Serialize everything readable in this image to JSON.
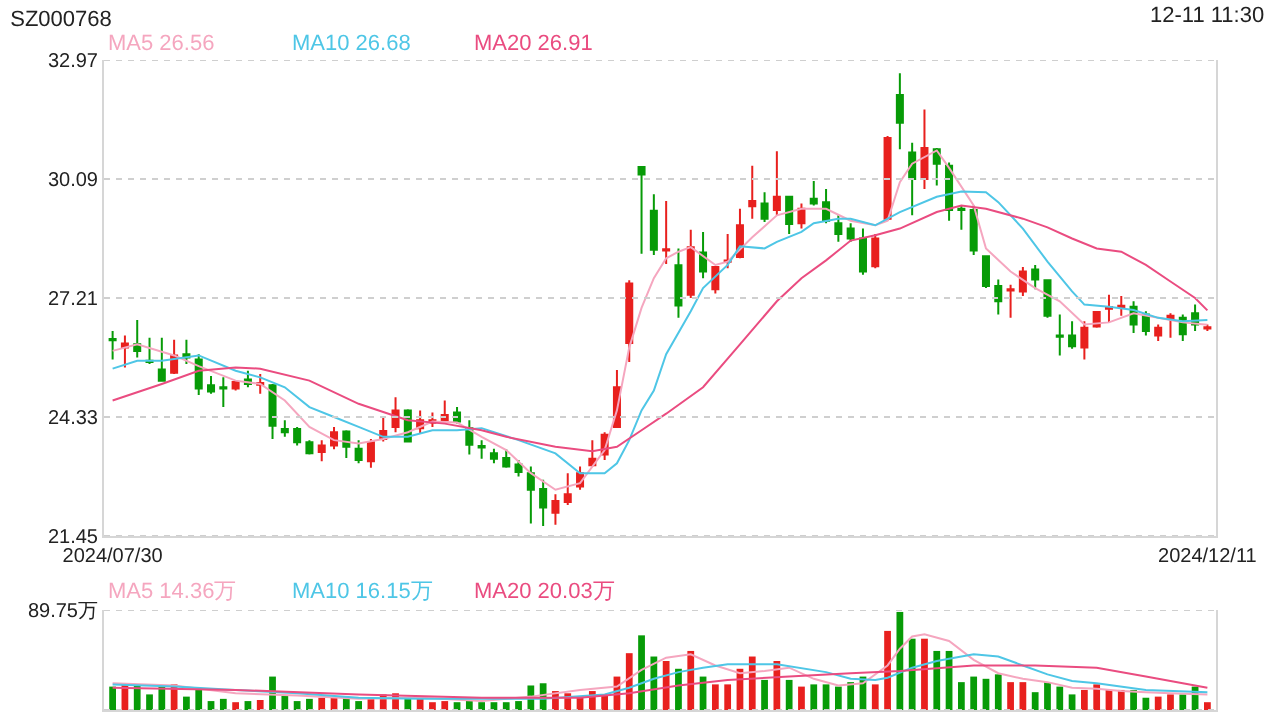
{
  "chart_data": [
    {
      "type": "candlestick",
      "title": "SZ000768",
      "annotations": [
        "12-11 11:30"
      ],
      "categories": [
        "2024/07/30",
        null,
        null,
        null,
        null,
        null,
        null,
        null,
        null,
        null,
        null,
        null,
        null,
        null,
        null,
        null,
        null,
        null,
        null,
        null,
        null,
        null,
        null,
        null,
        null,
        null,
        null,
        null,
        null,
        null,
        null,
        null,
        null,
        null,
        null,
        null,
        null,
        null,
        null,
        null,
        null,
        null,
        null,
        null,
        null,
        null,
        null,
        null,
        null,
        null,
        null,
        null,
        null,
        null,
        null,
        null,
        null,
        null,
        null,
        null,
        null,
        null,
        null,
        null,
        null,
        null,
        null,
        null,
        null,
        null,
        null,
        null,
        null,
        null,
        null,
        null,
        null,
        null,
        null,
        null,
        null,
        null,
        null,
        null,
        null,
        null,
        null,
        null,
        null,
        "2024/12/11"
      ],
      "ohlc": [
        [
          26.22,
          26.41,
          25.72,
          26.19
        ],
        [
          26.01,
          26.3,
          25.53,
          26.11
        ],
        [
          26.09,
          26.68,
          25.77,
          25.93
        ],
        [
          25.69,
          26.25,
          25.61,
          25.66
        ],
        [
          25.48,
          26.25,
          25.21,
          25.21
        ],
        [
          25.4,
          26.2,
          25.37,
          25.82
        ],
        [
          25.85,
          26.2,
          25.61,
          25.77
        ],
        [
          25.72,
          25.85,
          24.86,
          25.02
        ],
        [
          25.1,
          25.32,
          24.89,
          24.95
        ],
        [
          25.05,
          25.29,
          24.57,
          25.02
        ],
        [
          25.02,
          25.21,
          24.97,
          25.18
        ],
        [
          25.24,
          25.45,
          25.05,
          25.13
        ],
        [
          25.11,
          25.37,
          24.89,
          25.15
        ],
        [
          25.1,
          25.13,
          23.8,
          24.12
        ],
        [
          24.04,
          24.25,
          23.85,
          23.96
        ],
        [
          24.04,
          24.09,
          23.64,
          23.72
        ],
        [
          23.72,
          23.77,
          23.42,
          23.45
        ],
        [
          23.48,
          23.77,
          23.26,
          23.64
        ],
        [
          23.64,
          24.09,
          23.55,
          23.96
        ],
        [
          23.98,
          24.01,
          23.34,
          23.61
        ],
        [
          23.56,
          23.77,
          23.21,
          23.29
        ],
        [
          23.26,
          23.8,
          23.1,
          23.72
        ],
        [
          23.8,
          24.33,
          23.74,
          23.99
        ],
        [
          24.09,
          24.81,
          23.96,
          24.49
        ],
        [
          24.49,
          24.52,
          23.72,
          23.74
        ],
        [
          24.06,
          24.49,
          23.93,
          24.25
        ],
        [
          24.19,
          24.44,
          24.09,
          24.25
        ],
        [
          24.25,
          24.73,
          24.17,
          24.38
        ],
        [
          24.44,
          24.57,
          24.17,
          24.22
        ],
        [
          24.06,
          24.25,
          23.42,
          23.66
        ],
        [
          23.63,
          23.77,
          23.32,
          23.59
        ],
        [
          23.45,
          23.56,
          23.21,
          23.32
        ],
        [
          23.34,
          23.55,
          23.1,
          23.13
        ],
        [
          23.18,
          23.29,
          22.89,
          23.0
        ],
        [
          22.97,
          23.13,
          21.75,
          22.57
        ],
        [
          22.59,
          22.81,
          21.69,
          22.14
        ],
        [
          22.01,
          22.46,
          21.72,
          22.3
        ],
        [
          22.27,
          22.97,
          22.2,
          22.46
        ],
        [
          22.65,
          23.13,
          22.57,
          22.97
        ],
        [
          23.16,
          23.77,
          23.13,
          23.32
        ],
        [
          23.42,
          23.96,
          23.29,
          23.9
        ],
        [
          24.09,
          25.47,
          24.09,
          25.05
        ],
        [
          26.12,
          27.64,
          25.66,
          27.56
        ],
        [
          30.38,
          30.4,
          28.28,
          30.2
        ],
        [
          29.32,
          29.72,
          28.25,
          28.38
        ],
        [
          28.36,
          29.56,
          28.03,
          28.39
        ],
        [
          28.0,
          28.41,
          26.73,
          27.03
        ],
        [
          27.29,
          28.86,
          27.21,
          28.44
        ],
        [
          28.31,
          28.81,
          27.69,
          27.85
        ],
        [
          27.42,
          27.96,
          27.32,
          27.96
        ],
        [
          28.09,
          28.76,
          27.93,
          28.12
        ],
        [
          28.2,
          29.37,
          28.17,
          28.97
        ],
        [
          29.43,
          30.41,
          29.13,
          29.56
        ],
        [
          29.5,
          29.77,
          29.05,
          29.13
        ],
        [
          29.34,
          30.76,
          29.21,
          29.66
        ],
        [
          29.66,
          29.68,
          28.76,
          29.0
        ],
        [
          29.02,
          29.5,
          28.89,
          29.37
        ],
        [
          29.61,
          30.04,
          29.45,
          29.5
        ],
        [
          29.53,
          29.85,
          29.02,
          29.08
        ],
        [
          29.02,
          29.21,
          28.57,
          28.76
        ],
        [
          28.89,
          29.02,
          28.57,
          28.65
        ],
        [
          28.65,
          28.89,
          27.77,
          27.85
        ],
        [
          27.98,
          28.76,
          27.93,
          28.65
        ],
        [
          29.13,
          31.13,
          29.08,
          31.08
        ],
        [
          32.12,
          32.65,
          30.81,
          31.45
        ],
        [
          30.73,
          30.97,
          29.21,
          30.09
        ],
        [
          30.09,
          31.77,
          29.85,
          30.84
        ],
        [
          30.81,
          30.84,
          29.93,
          30.46
        ],
        [
          30.41,
          30.49,
          29.08,
          29.34
        ],
        [
          29.37,
          29.45,
          28.86,
          29.34
        ],
        [
          29.34,
          29.45,
          28.25,
          28.36
        ],
        [
          28.22,
          28.24,
          27.45,
          27.5
        ],
        [
          27.5,
          27.66,
          26.81,
          27.13
        ],
        [
          27.39,
          27.53,
          26.73,
          27.42
        ],
        [
          27.37,
          27.96,
          27.26,
          27.85
        ],
        [
          27.9,
          28.01,
          27.42,
          27.66
        ],
        [
          27.64,
          27.66,
          26.73,
          26.78
        ],
        [
          26.3,
          26.81,
          25.82,
          26.27
        ],
        [
          26.3,
          26.65,
          25.98,
          26.04
        ],
        [
          26.01,
          26.65,
          25.72,
          26.49
        ],
        [
          26.52,
          26.89,
          26.49,
          26.87
        ],
        [
          26.95,
          27.29,
          26.62,
          26.99
        ],
        [
          26.99,
          27.26,
          26.78,
          27.02
        ],
        [
          27.0,
          27.13,
          26.36,
          26.57
        ],
        [
          26.81,
          26.89,
          26.3,
          26.41
        ],
        [
          26.3,
          26.57,
          26.17,
          26.49
        ],
        [
          26.71,
          26.84,
          26.25,
          26.78
        ],
        [
          26.73,
          26.81,
          26.17,
          26.33
        ],
        [
          26.84,
          27.05,
          26.41,
          26.57
        ],
        [
          26.47,
          26.57,
          26.41,
          26.5
        ]
      ],
      "colors": [
        "#079b07",
        "#e8201e",
        "#079b07",
        "#079b07",
        "#079b07",
        "#e8201e",
        "#079b07",
        "#079b07",
        "#079b07",
        "#079b07",
        "#e8201e",
        "#079b07",
        "#e8201e",
        "#079b07",
        "#079b07",
        "#079b07",
        "#079b07",
        "#e8201e",
        "#e8201e",
        "#079b07",
        "#079b07",
        "#e8201e",
        "#e8201e",
        "#e8201e",
        "#079b07",
        "#e8201e",
        "#e8201e",
        "#e8201e",
        "#079b07",
        "#079b07",
        "#079b07",
        "#079b07",
        "#079b07",
        "#079b07",
        "#079b07",
        "#079b07",
        "#e8201e",
        "#e8201e",
        "#e8201e",
        "#e8201e",
        "#e8201e",
        "#e8201e",
        "#e8201e",
        "#079b07",
        "#079b07",
        "#e8201e",
        "#079b07",
        "#e8201e",
        "#079b07",
        "#e8201e",
        "#e8201e",
        "#e8201e",
        "#e8201e",
        "#079b07",
        "#e8201e",
        "#079b07",
        "#e8201e",
        "#079b07",
        "#079b07",
        "#079b07",
        "#079b07",
        "#079b07",
        "#e8201e",
        "#e8201e",
        "#079b07",
        "#079b07",
        "#e8201e",
        "#079b07",
        "#079b07",
        "#079b07",
        "#079b07",
        "#079b07",
        "#079b07",
        "#e8201e",
        "#e8201e",
        "#079b07",
        "#079b07",
        "#079b07",
        "#079b07",
        "#e8201e",
        "#e8201e",
        "#e8201e",
        "#e8201e",
        "#079b07",
        "#079b07",
        "#e8201e",
        "#e8201e",
        "#079b07",
        "#079b07",
        "#e8201e"
      ],
      "series": [
        {
          "name": "MA5 26.56",
          "type": "line",
          "color": "#f5a6bf",
          "values": [
            25.93,
            null,
            26.09,
            null,
            null,
            25.82,
            null,
            25.56,
            null,
            null,
            25.21,
            null,
            25.13,
            null,
            24.73,
            null,
            24.09,
            null,
            23.77,
            null,
            23.69,
            null,
            23.8,
            null,
            23.96,
            null,
            24.22,
            null,
            24.2,
            null,
            23.85,
            null,
            23.53,
            null,
            22.97,
            null,
            22.57,
            null,
            22.73,
            null,
            23.53,
            24.49,
            26.01,
            26.97,
            27.69,
            28.17,
            28.33,
            28.44,
            null,
            28.01,
            28.09,
            null,
            28.68,
            null,
            29.21,
            null,
            29.37,
            null,
            29.37,
            null,
            29.08,
            null,
            28.97,
            29.08,
            30.01,
            30.46,
            null,
            30.78,
            30.36,
            null,
            29.45,
            28.41,
            null,
            27.85,
            null,
            27.45,
            null,
            27.13,
            null,
            26.57,
            null,
            26.62,
            null,
            26.84,
            null,
            26.73,
            null,
            26.62,
            null,
            26.56
          ]
        },
        {
          "name": "MA10 26.68",
          "type": "line",
          "color": "#4ec6e6",
          "values": [
            25.5,
            null,
            25.69,
            null,
            25.69,
            null,
            null,
            25.82,
            null,
            null,
            25.45,
            null,
            25.29,
            null,
            25.05,
            null,
            24.57,
            null,
            24.33,
            null,
            24.09,
            null,
            23.85,
            null,
            23.85,
            null,
            24.01,
            null,
            24.01,
            null,
            24.06,
            null,
            null,
            23.77,
            null,
            null,
            23.45,
            null,
            22.97,
            null,
            22.97,
            23.21,
            23.77,
            24.49,
            24.97,
            25.85,
            null,
            26.89,
            27.45,
            null,
            28.01,
            28.46,
            null,
            28.41,
            28.57,
            null,
            28.81,
            29.02,
            null,
            29.13,
            29.13,
            null,
            28.97,
            null,
            29.29,
            null,
            null,
            29.66,
            null,
            29.79,
            null,
            29.77,
            29.53,
            null,
            28.89,
            null,
            28.09,
            null,
            27.37,
            27.05,
            null,
            27.0,
            null,
            26.92,
            null,
            26.73,
            null,
            26.65,
            null,
            26.68
          ]
        },
        {
          "name": "MA20 26.91",
          "type": "line",
          "color": "#ea4c80",
          "values": [
            24.73,
            null,
            null,
            null,
            25.13,
            null,
            null,
            25.45,
            null,
            null,
            25.53,
            null,
            25.5,
            null,
            null,
            null,
            25.21,
            null,
            null,
            null,
            24.65,
            null,
            null,
            null,
            24.25,
            null,
            null,
            24.17,
            null,
            null,
            24.01,
            null,
            23.85,
            null,
            null,
            null,
            23.61,
            null,
            null,
            23.5,
            null,
            23.61,
            null,
            24.01,
            null,
            24.41,
            null,
            null,
            25.05,
            null,
            null,
            26.09,
            null,
            null,
            27.13,
            null,
            27.69,
            null,
            28.12,
            null,
            28.6,
            null,
            28.73,
            null,
            28.89,
            null,
            null,
            29.29,
            null,
            29.45,
            null,
            29.37,
            null,
            null,
            29.13,
            null,
            28.92,
            null,
            28.65,
            null,
            28.41,
            null,
            28.33,
            null,
            28.01,
            null,
            27.61,
            null,
            27.21,
            26.91
          ]
        }
      ],
      "ylim": [
        21.45,
        32.97
      ],
      "yticks": [
        21.45,
        24.33,
        27.21,
        30.09,
        32.97
      ],
      "grid": "y"
    },
    {
      "type": "bar",
      "categories": [
        null,
        null,
        null,
        null,
        null,
        null,
        null,
        null,
        null,
        null,
        null,
        null,
        null,
        null,
        null,
        null,
        null,
        null,
        null,
        null,
        null,
        null,
        null,
        null,
        null,
        null,
        null,
        null,
        null,
        null,
        null,
        null,
        null,
        null,
        null,
        null,
        null,
        null,
        null,
        null,
        null,
        null,
        null,
        null,
        null,
        null,
        null,
        null,
        null,
        null,
        null,
        null,
        null,
        null,
        null,
        null,
        null,
        null,
        null,
        null,
        null,
        null,
        null,
        null,
        null,
        null,
        null,
        null,
        null,
        null,
        null,
        null,
        null,
        null,
        null,
        null,
        null,
        null,
        null,
        null,
        null,
        null,
        null,
        null,
        null,
        null,
        null,
        null,
        null,
        null
      ],
      "values": [
        21,
        24,
        22,
        14,
        21,
        23,
        12,
        18,
        8,
        10,
        7,
        8,
        9,
        30,
        13,
        8,
        10,
        11,
        11,
        11,
        8,
        11,
        14,
        15,
        10,
        12,
        7,
        8,
        7,
        9,
        7,
        7,
        7,
        8,
        22,
        24,
        17,
        15,
        12,
        17,
        13,
        30,
        51,
        67,
        48,
        44,
        37,
        53,
        30,
        23,
        23,
        37,
        48,
        27,
        44,
        27,
        21,
        23,
        23,
        21,
        25,
        30,
        23,
        71,
        88,
        64,
        64,
        53,
        53,
        25,
        30,
        28,
        32,
        25,
        25,
        16,
        25,
        21,
        14,
        18,
        23,
        18,
        18,
        18,
        11,
        12,
        14,
        14,
        21,
        7
      ],
      "colors": [
        "#079b07",
        "#e8201e",
        "#079b07",
        "#079b07",
        "#079b07",
        "#e8201e",
        "#079b07",
        "#079b07",
        "#079b07",
        "#079b07",
        "#e8201e",
        "#079b07",
        "#e8201e",
        "#079b07",
        "#079b07",
        "#079b07",
        "#079b07",
        "#e8201e",
        "#e8201e",
        "#079b07",
        "#079b07",
        "#e8201e",
        "#e8201e",
        "#e8201e",
        "#079b07",
        "#e8201e",
        "#e8201e",
        "#e8201e",
        "#079b07",
        "#079b07",
        "#079b07",
        "#079b07",
        "#079b07",
        "#079b07",
        "#079b07",
        "#079b07",
        "#e8201e",
        "#e8201e",
        "#e8201e",
        "#e8201e",
        "#e8201e",
        "#e8201e",
        "#e8201e",
        "#079b07",
        "#079b07",
        "#e8201e",
        "#079b07",
        "#e8201e",
        "#079b07",
        "#e8201e",
        "#e8201e",
        "#e8201e",
        "#e8201e",
        "#079b07",
        "#e8201e",
        "#079b07",
        "#e8201e",
        "#079b07",
        "#079b07",
        "#079b07",
        "#079b07",
        "#079b07",
        "#e8201e",
        "#e8201e",
        "#079b07",
        "#079b07",
        "#e8201e",
        "#079b07",
        "#079b07",
        "#079b07",
        "#079b07",
        "#079b07",
        "#079b07",
        "#e8201e",
        "#e8201e",
        "#079b07",
        "#079b07",
        "#079b07",
        "#079b07",
        "#e8201e",
        "#e8201e",
        "#e8201e",
        "#e8201e",
        "#079b07",
        "#079b07",
        "#e8201e",
        "#e8201e",
        "#079b07",
        "#079b07",
        "#e8201e"
      ],
      "series": [
        {
          "name": "MA5 14.36万",
          "type": "line",
          "color": "#f5a6bf",
          "values": [
            24,
            null,
            null,
            null,
            null,
            22,
            null,
            null,
            null,
            null,
            15,
            null,
            null,
            null,
            null,
            13,
            null,
            null,
            null,
            null,
            10,
            null,
            null,
            null,
            null,
            11,
            null,
            null,
            null,
            null,
            8,
            null,
            null,
            null,
            12,
            null,
            null,
            null,
            18,
            null,
            null,
            21,
            null,
            36,
            null,
            47,
            null,
            50,
            null,
            40,
            null,
            33,
            null,
            35,
            null,
            38,
            null,
            28,
            null,
            22,
            null,
            24,
            null,
            40,
            55,
            66,
            68,
            null,
            62,
            null,
            45,
            null,
            33,
            null,
            28,
            null,
            25,
            null,
            20,
            null,
            19,
            null,
            17,
            null,
            16,
            null,
            15,
            null,
            null,
            14
          ]
        },
        {
          "name": "MA10 16.15万",
          "type": "line",
          "color": "#4ec6e6",
          "values": [
            23,
            null,
            null,
            null,
            null,
            21,
            null,
            null,
            null,
            null,
            18,
            null,
            null,
            null,
            null,
            15,
            null,
            null,
            null,
            null,
            11,
            null,
            null,
            null,
            null,
            10,
            null,
            null,
            null,
            null,
            10,
            null,
            null,
            null,
            null,
            10,
            null,
            null,
            null,
            null,
            14,
            null,
            20,
            null,
            28,
            null,
            34,
            null,
            38,
            null,
            41,
            null,
            null,
            null,
            41,
            null,
            null,
            null,
            34,
            null,
            28,
            null,
            27,
            29,
            null,
            38,
            null,
            44,
            null,
            null,
            50,
            null,
            48,
            null,
            40,
            null,
            32,
            null,
            26,
            null,
            24,
            null,
            null,
            null,
            18,
            null,
            null,
            null,
            null,
            16
          ]
        },
        {
          "name": "MA20 20.03万",
          "type": "line",
          "color": "#ea4c80",
          "values": [
            20,
            null,
            null,
            null,
            null,
            null,
            null,
            null,
            null,
            null,
            18,
            null,
            null,
            null,
            null,
            null,
            null,
            null,
            null,
            null,
            14,
            null,
            null,
            null,
            null,
            null,
            null,
            null,
            null,
            null,
            11,
            null,
            null,
            null,
            null,
            null,
            null,
            null,
            11,
            null,
            null,
            null,
            15,
            null,
            null,
            null,
            22,
            null,
            null,
            null,
            27,
            null,
            null,
            null,
            null,
            30,
            null,
            null,
            null,
            null,
            33,
            null,
            null,
            null,
            35,
            null,
            null,
            null,
            null,
            null,
            40,
            null,
            null,
            null,
            null,
            40,
            null,
            null,
            null,
            null,
            38,
            null,
            null,
            null,
            30,
            null,
            null,
            24,
            null,
            20
          ]
        }
      ],
      "ylim": [
        0,
        89.75
      ],
      "yticks": [
        0,
        {
          "value": 89.75,
          "label": "89.75万"
        }
      ],
      "grid": "y",
      "tick_labels": "y"
    }
  ]
}
